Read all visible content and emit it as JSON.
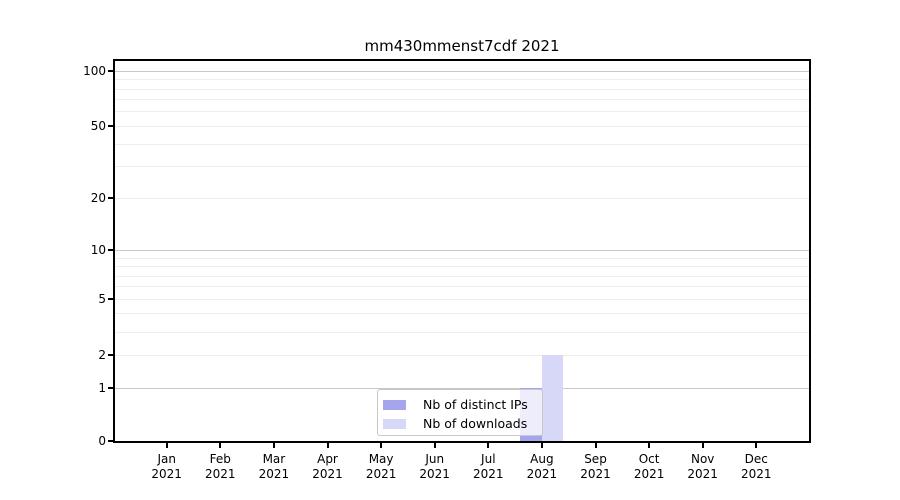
{
  "title": "mm430mmenst7cdf 2021",
  "colors": {
    "distinct_ips": "#a5a5ed",
    "downloads": "#d7d7f7",
    "grid_major": "#c8c8c8",
    "grid_minor": "#ededed",
    "spine": "#000000",
    "legend_border": "#c8c8c8",
    "background": "#ffffff"
  },
  "chart_data": {
    "type": "bar",
    "title": "mm430mmenst7cdf 2021",
    "categories": [
      "Jan 2021",
      "Feb 2021",
      "Mar 2021",
      "Apr 2021",
      "May 2021",
      "Jun 2021",
      "Jul 2021",
      "Aug 2021",
      "Sep 2021",
      "Oct 2021",
      "Nov 2021",
      "Dec 2021"
    ],
    "series": [
      {
        "name": "Nb of distinct IPs",
        "color": "#a5a5ed",
        "values": [
          0,
          0,
          0,
          0,
          0,
          0,
          0,
          1,
          0,
          0,
          0,
          0
        ]
      },
      {
        "name": "Nb of downloads",
        "color": "#d7d7f7",
        "values": [
          0,
          0,
          0,
          0,
          0,
          0,
          0,
          2,
          0,
          0,
          0,
          0
        ]
      }
    ],
    "xlabel": "",
    "ylabel": "",
    "yscale": "symlog-like (log10 of 1+value)",
    "y_ticks": [
      0,
      1,
      2,
      5,
      10,
      20,
      50,
      100
    ],
    "y_major_gridlines": [
      1,
      10,
      100
    ],
    "y_minor_gridlines": [
      2,
      3,
      4,
      6,
      7,
      8,
      9,
      20,
      30,
      40,
      60,
      70,
      80,
      90
    ],
    "ylim": [
      0,
      115
    ],
    "grid": "horizontal only",
    "legend_position": "lower center"
  }
}
